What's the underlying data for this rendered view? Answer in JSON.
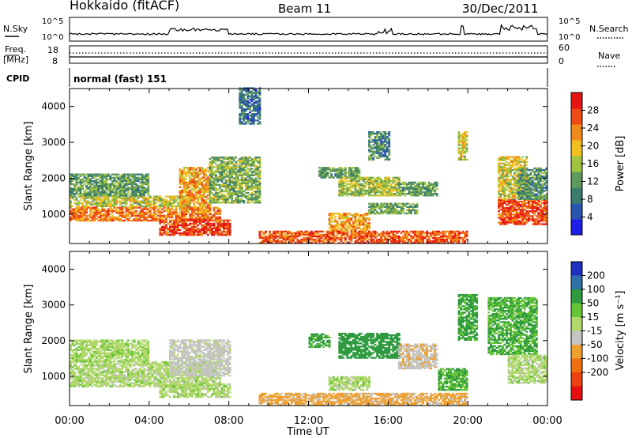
{
  "header": {
    "title": "Hokkaido (fitACF)",
    "beam": "Beam 11",
    "date": "30/Dec/2011"
  },
  "ancillary": {
    "nsky_label": "N.Sky",
    "nsky_ticks": [
      "10^5",
      "10^0"
    ],
    "nsearch_label": "N.Search",
    "nsearch_ticks": [
      "10^5",
      "10^0"
    ],
    "freq_label_1": "Freq.",
    "freq_label_2": "[MHz]",
    "freq_ticks": [
      "18",
      "8"
    ],
    "nave_label": "Nave",
    "nave_ticks": [
      "60",
      "0"
    ],
    "cpid_label": "CPID",
    "cpid_text": "normal (fast) 151"
  },
  "time_axis": {
    "label": "Time UT",
    "ticks": [
      "00:00",
      "04:00",
      "08:00",
      "12:00",
      "16:00",
      "20:00",
      "00:00"
    ],
    "range_hours": [
      0,
      24
    ]
  },
  "range_axis": {
    "label": "Slant Range [km]",
    "ticks": [
      "1000",
      "2000",
      "3000",
      "4000"
    ],
    "range_km": [
      180,
      4500
    ]
  },
  "power_colorbar": {
    "label": "Power [dB]",
    "ticks": [
      "4",
      "8",
      "12",
      "16",
      "20",
      "24",
      "28"
    ],
    "range": [
      0,
      32
    ],
    "colors": [
      "#1f1fe6",
      "#2a56b0",
      "#3a7d6c",
      "#5f9a5d",
      "#a0c43f",
      "#f0c020",
      "#f08a1a",
      "#ee4a16",
      "#e61414"
    ]
  },
  "velocity_colorbar": {
    "label": "Velocity [m s⁻¹]",
    "ticks": [
      "200",
      "100",
      "50",
      "15",
      "-15",
      "-50",
      "-100",
      "-200"
    ],
    "colors": [
      "#2030c0",
      "#2f70a8",
      "#2f9a40",
      "#66c436",
      "#b0d86a",
      "#c4c4c0",
      "#f0a030",
      "#f07010",
      "#ee4010",
      "#e61010"
    ]
  },
  "chart_data": [
    {
      "type": "heatmap",
      "name": "power",
      "xlabel": "Time UT",
      "ylabel": "Slant Range [km]",
      "xlim": [
        0,
        24
      ],
      "ylim": [
        180,
        4500
      ],
      "zlabel": "Power [dB]",
      "zlim": [
        0,
        32
      ],
      "regions": [
        {
          "t0": 0.0,
          "t1": 7.5,
          "r0": 800,
          "r1": 1200,
          "p": 24
        },
        {
          "t0": 0.0,
          "t1": 6.0,
          "r0": 1200,
          "r1": 1500,
          "p": 17
        },
        {
          "t0": 0.0,
          "t1": 4.0,
          "r0": 1500,
          "r1": 2100,
          "p": 12
        },
        {
          "t0": 4.5,
          "t1": 8.0,
          "r0": 400,
          "r1": 850,
          "p": 28
        },
        {
          "t0": 5.5,
          "t1": 7.0,
          "r0": 1100,
          "r1": 2300,
          "p": 22
        },
        {
          "t0": 7.0,
          "t1": 9.5,
          "r0": 1300,
          "r1": 2600,
          "p": 14
        },
        {
          "t0": 8.5,
          "t1": 9.5,
          "r0": 3500,
          "r1": 4500,
          "p": 8
        },
        {
          "t0": 12.5,
          "t1": 14.5,
          "r0": 2000,
          "r1": 2300,
          "p": 12
        },
        {
          "t0": 13.0,
          "t1": 15.0,
          "r0": 500,
          "r1": 1000,
          "p": 22
        },
        {
          "t0": 13.5,
          "t1": 16.5,
          "r0": 1500,
          "r1": 2000,
          "p": 16
        },
        {
          "t0": 15.0,
          "t1": 17.5,
          "r0": 1000,
          "r1": 1300,
          "p": 13
        },
        {
          "t0": 16.5,
          "t1": 18.5,
          "r0": 1500,
          "r1": 1900,
          "p": 12
        },
        {
          "t0": 15.0,
          "t1": 16.0,
          "r0": 2500,
          "r1": 3300,
          "p": 10
        },
        {
          "t0": 9.5,
          "t1": 20.0,
          "r0": 180,
          "r1": 500,
          "p": 26
        },
        {
          "t0": 19.5,
          "t1": 20.0,
          "r0": 2500,
          "r1": 3300,
          "p": 18
        },
        {
          "t0": 21.5,
          "t1": 24.0,
          "r0": 700,
          "r1": 1400,
          "p": 27
        },
        {
          "t0": 21.5,
          "t1": 23.0,
          "r0": 1400,
          "r1": 2600,
          "p": 18
        },
        {
          "t0": 22.5,
          "t1": 24.0,
          "r0": 1400,
          "r1": 2300,
          "p": 11
        }
      ]
    },
    {
      "type": "heatmap",
      "name": "velocity",
      "xlabel": "Time UT",
      "ylabel": "Slant Range [km]",
      "xlim": [
        0,
        24
      ],
      "ylim": [
        180,
        4500
      ],
      "zlabel": "Velocity [m s⁻¹]",
      "zlim": [
        -250,
        250
      ],
      "regions": [
        {
          "t0": 0.0,
          "t1": 7.5,
          "r0": 700,
          "r1": 1400,
          "v": 0
        },
        {
          "t0": 0.0,
          "t1": 4.0,
          "r0": 1400,
          "r1": 2000,
          "v": 5
        },
        {
          "t0": 4.5,
          "t1": 8.0,
          "r0": 400,
          "r1": 800,
          "v": 0
        },
        {
          "t0": 5.0,
          "t1": 8.0,
          "r0": 1000,
          "r1": 2000,
          "v": -30
        },
        {
          "t0": 9.5,
          "t1": 20.0,
          "r0": 180,
          "r1": 500,
          "v": -60
        },
        {
          "t0": 12.0,
          "t1": 13.0,
          "r0": 1800,
          "r1": 2200,
          "v": 60
        },
        {
          "t0": 13.0,
          "t1": 15.0,
          "r0": 600,
          "r1": 1000,
          "v": 0
        },
        {
          "t0": 13.5,
          "t1": 16.5,
          "r0": 1500,
          "r1": 2200,
          "v": 70
        },
        {
          "t0": 16.5,
          "t1": 18.5,
          "r0": 1200,
          "r1": 1900,
          "v": -40
        },
        {
          "t0": 18.5,
          "t1": 20.0,
          "r0": 600,
          "r1": 1200,
          "v": 50
        },
        {
          "t0": 19.5,
          "t1": 20.5,
          "r0": 2000,
          "r1": 3300,
          "v": 60
        },
        {
          "t0": 21.0,
          "t1": 23.5,
          "r0": 1600,
          "r1": 3200,
          "v": 50
        },
        {
          "t0": 22.0,
          "t1": 24.0,
          "r0": 800,
          "r1": 1600,
          "v": 0
        }
      ]
    }
  ]
}
